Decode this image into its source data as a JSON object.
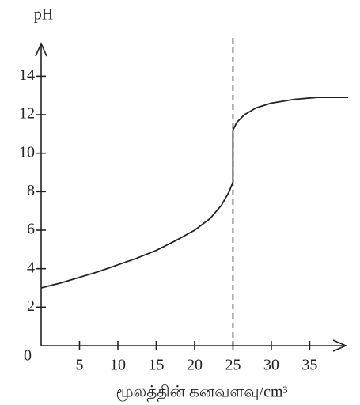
{
  "chart_data": {
    "type": "line",
    "ylabel": "pH",
    "xlabel": "மூலத்தின்   கனவளவு/cm³",
    "x": [
      0,
      2.5,
      5,
      7.5,
      10,
      12.5,
      15,
      17.5,
      20,
      22,
      23.5,
      24.5,
      25,
      25,
      25.5,
      26.5,
      28,
      30,
      33,
      36,
      40
    ],
    "values": [
      3.0,
      3.25,
      3.55,
      3.85,
      4.2,
      4.55,
      4.95,
      5.45,
      6.0,
      6.6,
      7.3,
      8.0,
      8.5,
      11.2,
      11.6,
      12.0,
      12.35,
      12.6,
      12.8,
      12.9,
      12.9
    ],
    "color": "#222222",
    "xlim": [
      0,
      39.7
    ],
    "ylim": [
      0,
      15.7
    ],
    "xticks": [
      5,
      10,
      15,
      20,
      25,
      30,
      35
    ],
    "yticks": [
      0,
      2,
      4,
      6,
      8,
      10,
      12,
      14
    ],
    "vline": 25
  }
}
